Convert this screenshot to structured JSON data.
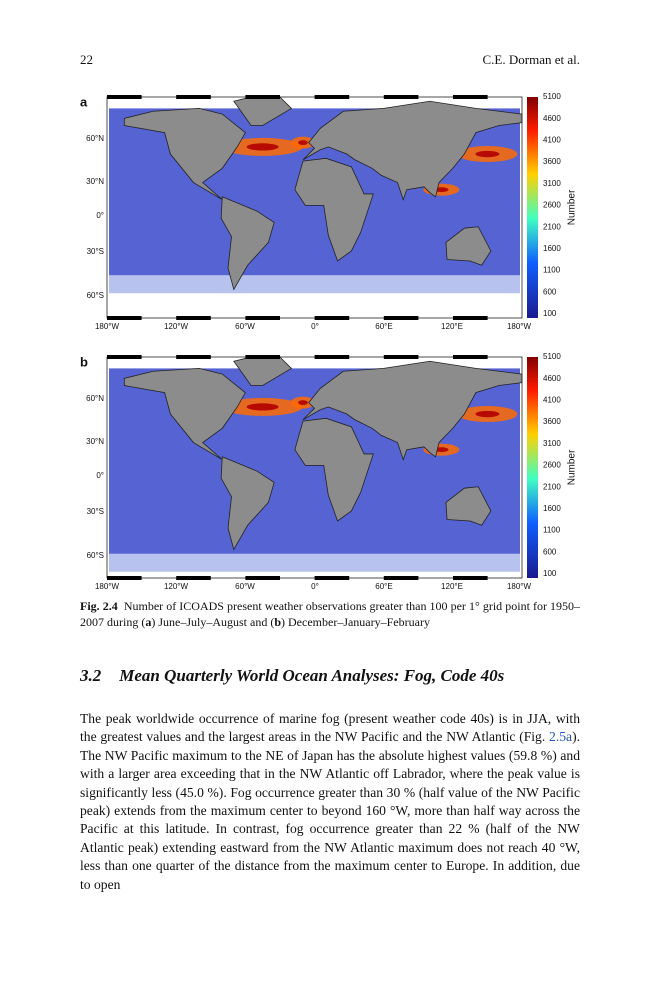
{
  "header": {
    "page_number": "22",
    "running_head": "C.E. Dorman et al."
  },
  "figure": {
    "panels": [
      {
        "label": "a"
      },
      {
        "label": "b"
      }
    ],
    "lat_labels": [
      "60°N",
      "30°N",
      "0°",
      "30°S",
      "60°S"
    ],
    "lon_labels": [
      "180°W",
      "120°W",
      "60°W",
      "0°",
      "60°E",
      "120°E",
      "180°W"
    ],
    "colorbar_labels": [
      "5100",
      "4600",
      "4100",
      "3600",
      "3100",
      "2600",
      "2100",
      "1600",
      "1100",
      "600",
      "100"
    ],
    "colorbar_title": "Number",
    "caption": {
      "label": "Fig. 2.4",
      "segments": [
        "Number of ICOADS present weather observations greater than 100 per 1° grid point for 1950–2007 during (",
        "a",
        ") June–July–August and (",
        "b",
        ") December–January–February"
      ]
    }
  },
  "section": {
    "number": "3.2",
    "title": "Mean Quarterly World Ocean Analyses: Fog, Code 40s"
  },
  "paragraph": {
    "segments": [
      "The peak worldwide occurrence of marine fog (present weather code 40s) is in JJA, with the greatest values and the largest areas in the NW Pacific and the NW Atlantic (Fig. ",
      "2.5a",
      "). The NW Pacific maximum to the NE of Japan has the absolute highest values (59.8 %) and with a larger area exceeding that in the NW Atlantic off Labrador, where the peak value is significantly less (45.0 %). Fog occurrence greater than 30 % (half value of the NW Pacific peak) extends from the maximum center to beyond 160 °W, more than half way across the Pacific at this latitude. In contrast, fog occurrence greater than 22 % (half of the NW Atlantic peak) extending eastward from the NW Atlantic maximum does not reach 40 °W, less than one quarter of the distance from the maximum center to Europe. In addition, due to open"
    ]
  }
}
